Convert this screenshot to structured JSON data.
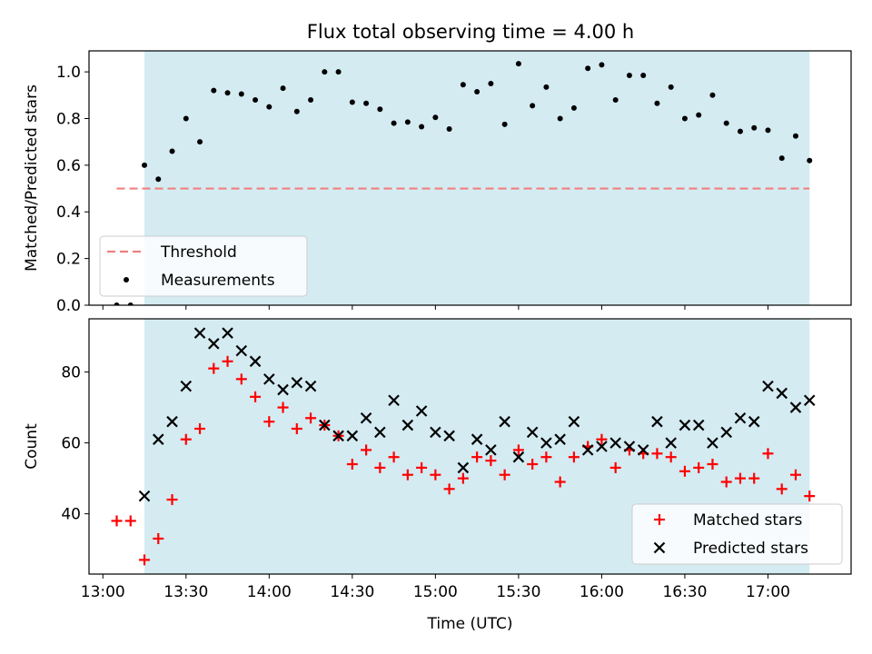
{
  "title": "Flux total observing time = 4.00 h",
  "colors": {
    "span": "#add8e6",
    "threshold": "#f08080",
    "measurements": "#000000",
    "matched": "#ff0000",
    "predicted": "#000000"
  },
  "chart_data": [
    {
      "type": "scatter",
      "panel": "top",
      "ylabel": "Matched/Predicted stars",
      "ylim": [
        0,
        1.09
      ],
      "yticks": [
        "0.0",
        "0.2",
        "0.4",
        "0.6",
        "0.8",
        "1.0"
      ],
      "ytick_values": [
        0,
        0.2,
        0.4,
        0.6,
        0.8,
        1.0
      ],
      "shaded_span": [
        "13:15",
        "17:15"
      ],
      "legend": {
        "position": "lower-left",
        "entries": [
          "Threshold",
          "Measurements"
        ]
      },
      "threshold": {
        "name": "Threshold",
        "value": 0.5,
        "x_range": [
          "13:05",
          "17:15"
        ]
      },
      "series": [
        {
          "name": "Measurements",
          "x": [
            "13:05",
            "13:10",
            "13:15",
            "13:20",
            "13:25",
            "13:30",
            "13:35",
            "13:40",
            "13:45",
            "13:50",
            "13:55",
            "14:00",
            "14:05",
            "14:10",
            "14:15",
            "14:20",
            "14:25",
            "14:30",
            "14:35",
            "14:40",
            "14:45",
            "14:50",
            "14:55",
            "15:00",
            "15:05",
            "15:10",
            "15:15",
            "15:20",
            "15:25",
            "15:30",
            "15:35",
            "15:40",
            "15:45",
            "15:50",
            "15:55",
            "16:00",
            "16:05",
            "16:10",
            "16:15",
            "16:20",
            "16:25",
            "16:30",
            "16:35",
            "16:40",
            "16:45",
            "16:50",
            "16:55",
            "17:00",
            "17:05",
            "17:10",
            "17:15"
          ],
          "y": [
            0.0,
            0.0,
            0.6,
            0.54,
            0.66,
            0.8,
            0.7,
            0.92,
            0.91,
            0.905,
            0.88,
            0.85,
            0.93,
            0.83,
            0.88,
            1.0,
            1.0,
            0.87,
            0.865,
            0.84,
            0.78,
            0.785,
            0.765,
            0.805,
            0.755,
            0.945,
            0.915,
            0.95,
            0.775,
            1.035,
            0.855,
            0.935,
            0.8,
            0.845,
            1.015,
            1.03,
            0.88,
            0.985,
            0.985,
            0.865,
            0.935,
            0.8,
            0.815,
            0.9,
            0.78,
            0.745,
            0.76,
            0.75,
            0.63,
            0.725,
            0.62
          ]
        }
      ]
    },
    {
      "type": "scatter",
      "panel": "bottom",
      "xlabel": "Time (UTC)",
      "ylabel": "Count",
      "ylim": [
        23,
        95
      ],
      "yticks": [
        "40",
        "60",
        "80"
      ],
      "ytick_values": [
        40,
        60,
        80
      ],
      "xlim": [
        "12:55",
        "17:30"
      ],
      "xticks": [
        "13:00",
        "13:30",
        "14:00",
        "14:30",
        "15:00",
        "15:30",
        "16:00",
        "16:30",
        "17:00"
      ],
      "shaded_span": [
        "13:15",
        "17:15"
      ],
      "legend": {
        "position": "lower-right",
        "entries": [
          "Matched stars",
          "Predicted stars"
        ]
      },
      "series": [
        {
          "name": "Matched stars",
          "marker": "+",
          "x": [
            "13:05",
            "13:10",
            "13:15",
            "13:20",
            "13:25",
            "13:30",
            "13:35",
            "13:40",
            "13:45",
            "13:50",
            "13:55",
            "14:00",
            "14:05",
            "14:10",
            "14:15",
            "14:20",
            "14:25",
            "14:30",
            "14:35",
            "14:40",
            "14:45",
            "14:50",
            "14:55",
            "15:00",
            "15:05",
            "15:10",
            "15:15",
            "15:20",
            "15:25",
            "15:30",
            "15:35",
            "15:40",
            "15:45",
            "15:50",
            "15:55",
            "16:00",
            "16:05",
            "16:10",
            "16:15",
            "16:20",
            "16:25",
            "16:30",
            "16:35",
            "16:40",
            "16:45",
            "16:50",
            "16:55",
            "17:00",
            "17:05",
            "17:10",
            "17:15"
          ],
          "y": [
            38,
            38,
            27,
            33,
            44,
            61,
            64,
            81,
            83,
            78,
            73,
            66,
            70,
            64,
            67,
            65,
            62,
            54,
            58,
            53,
            56,
            51,
            53,
            51,
            47,
            50,
            56,
            55,
            51,
            58,
            54,
            56,
            49,
            56,
            59,
            61,
            53,
            58,
            57,
            57,
            56,
            52,
            53,
            54,
            49,
            50,
            50,
            57,
            47,
            51,
            45
          ]
        },
        {
          "name": "Predicted stars",
          "marker": "x",
          "x": [
            "13:15",
            "13:20",
            "13:25",
            "13:30",
            "13:35",
            "13:40",
            "13:45",
            "13:50",
            "13:55",
            "14:00",
            "14:05",
            "14:10",
            "14:15",
            "14:20",
            "14:25",
            "14:30",
            "14:35",
            "14:40",
            "14:45",
            "14:50",
            "14:55",
            "15:00",
            "15:05",
            "15:10",
            "15:15",
            "15:20",
            "15:25",
            "15:30",
            "15:35",
            "15:40",
            "15:45",
            "15:50",
            "15:55",
            "16:00",
            "16:05",
            "16:10",
            "16:15",
            "16:20",
            "16:25",
            "16:30",
            "16:35",
            "16:40",
            "16:45",
            "16:50",
            "16:55",
            "17:00",
            "17:05",
            "17:10",
            "17:15"
          ],
          "y": [
            45,
            61,
            66,
            76,
            91,
            88,
            91,
            86,
            83,
            78,
            75,
            77,
            76,
            65,
            62,
            62,
            67,
            63,
            72,
            65,
            69,
            63,
            62,
            53,
            61,
            58,
            66,
            56,
            63,
            60,
            61,
            66,
            58,
            59,
            60,
            59,
            58,
            66,
            60,
            65,
            65,
            60,
            63,
            67,
            66,
            76,
            74,
            70,
            72
          ]
        }
      ]
    }
  ]
}
